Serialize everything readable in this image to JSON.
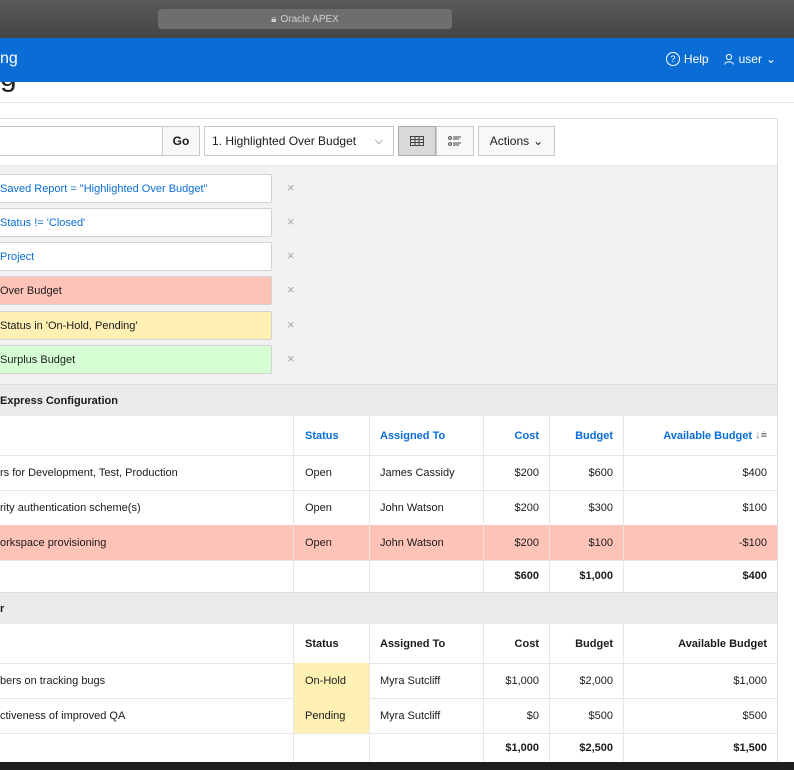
{
  "browser": {
    "url_label": "Oracle APEX"
  },
  "header": {
    "app_title": "ng",
    "help_label": "Help",
    "user_label": "user"
  },
  "page": {
    "title": "g"
  },
  "toolbar": {
    "go_label": "Go",
    "report_selected": "1. Highlighted Over Budget",
    "actions_label": "Actions"
  },
  "filters": [
    {
      "text": "Saved Report = \"Highlighted Over Budget\"",
      "style": "link"
    },
    {
      "text": "Status != 'Closed'",
      "style": "link"
    },
    {
      "text": "Project",
      "style": "link"
    },
    {
      "text": "Over Budget",
      "style": "red"
    },
    {
      "text": "Status in 'On-Hold, Pending'",
      "style": "yellow"
    },
    {
      "text": "Surplus Budget",
      "style": "green"
    }
  ],
  "groups": [
    {
      "title": "Express Configuration",
      "columns": [
        "",
        "Status",
        "Assigned To",
        "Cost",
        "Budget",
        "Available Budget"
      ],
      "rows": [
        {
          "task": "rs for Development, Test, Production",
          "status": "Open",
          "assigned": "James Cassidy",
          "cost": "$200",
          "budget": "$600",
          "available": "$400"
        },
        {
          "task": "rity authentication scheme(s)",
          "status": "Open",
          "assigned": "John Watson",
          "cost": "$200",
          "budget": "$300",
          "available": "$100"
        },
        {
          "task": "orkspace provisioning",
          "status": "Open",
          "assigned": "John Watson",
          "cost": "$200",
          "budget": "$100",
          "available": "-$100"
        }
      ],
      "totals": {
        "cost": "$600",
        "budget": "$1,000",
        "available": "$400"
      }
    },
    {
      "title": "r",
      "columns": [
        "",
        "Status",
        "Assigned To",
        "Cost",
        "Budget",
        "Available Budget"
      ],
      "rows": [
        {
          "task": "bers on tracking bugs",
          "status": "On-Hold",
          "assigned": "Myra Sutcliff",
          "cost": "$1,000",
          "budget": "$2,000",
          "available": "$1,000"
        },
        {
          "task": "ctiveness of improved QA",
          "status": "Pending",
          "assigned": "Myra Sutcliff",
          "cost": "$0",
          "budget": "$500",
          "available": "$500"
        }
      ],
      "totals": {
        "cost": "$1,000",
        "budget": "$2,500",
        "available": "$1,500"
      }
    }
  ],
  "colors": {
    "header_blue": "#0a6dd6",
    "over_budget": "#ffc3b7",
    "on_hold": "#fff0b3",
    "surplus": "#d6ffd5"
  }
}
